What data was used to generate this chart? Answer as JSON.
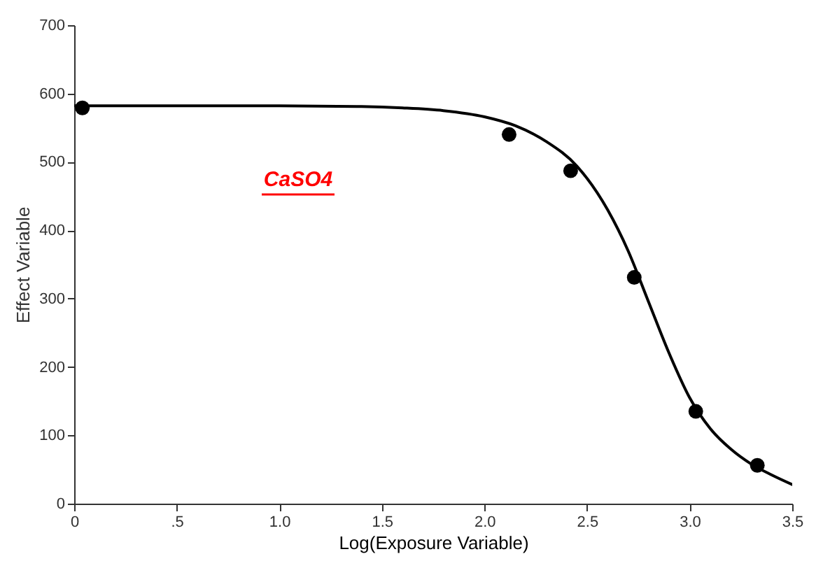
{
  "chart_data": {
    "type": "scatter",
    "xlabel": "Log(Exposure Variable)",
    "ylabel": "Effect Variable",
    "xlim": [
      0,
      3.5
    ],
    "ylim": [
      0,
      700
    ],
    "xticks": [
      0,
      {
        "value": 0.5,
        "label": ".5"
      },
      {
        "value": 1.0,
        "label": "1.0"
      },
      1.5,
      {
        "value": 2.0,
        "label": "2.0"
      },
      2.5,
      {
        "value": 3.0,
        "label": "3.0"
      },
      3.5
    ],
    "yticks": [
      0,
      100,
      200,
      300,
      400,
      500,
      600,
      700
    ],
    "grid": false,
    "annotations": [
      "CaSO4"
    ],
    "series": [
      {
        "color": "#000000",
        "marker": "circle",
        "x": [
          0.04,
          2.12,
          2.42,
          2.73,
          3.03,
          3.33
        ],
        "values": [
          579,
          540,
          487,
          331,
          135,
          56
        ]
      },
      {
        "type": "line",
        "color": "#000000",
        "marker": "none",
        "line_style": "solid",
        "x": [
          0,
          0.5,
          1.0,
          1.4,
          1.6,
          1.8,
          2.0,
          2.15,
          2.3,
          2.45,
          2.6,
          2.7,
          2.8,
          2.9,
          3.0,
          3.1,
          3.2,
          3.3,
          3.4,
          3.5
        ],
        "values": [
          582,
          582,
          582,
          581,
          579,
          575,
          566,
          553,
          530,
          494,
          430,
          370,
          295,
          220,
          155,
          110,
          80,
          58,
          42,
          28
        ]
      }
    ]
  }
}
